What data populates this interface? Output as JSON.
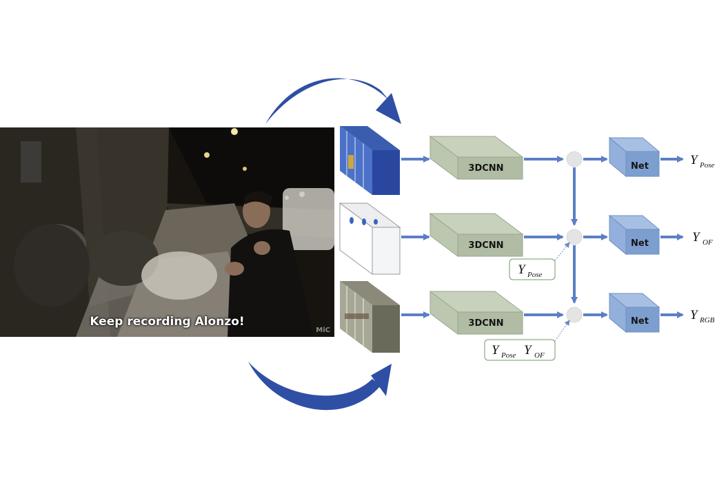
{
  "video": {
    "caption": "Keep recording Alonzo!",
    "watermark": "MiC"
  },
  "streams": [
    {
      "block_label": "3DCNN",
      "net_label": "Net",
      "output_symbol": "Y",
      "output_subscript": "Pose"
    },
    {
      "block_label": "3DCNN",
      "net_label": "Net",
      "output_symbol": "Y",
      "output_subscript": "OF"
    },
    {
      "block_label": "3DCNN",
      "net_label": "Net",
      "output_symbol": "Y",
      "output_subscript": "RGB"
    }
  ],
  "feedback_boxes": [
    {
      "terms": [
        {
          "symbol": "Y",
          "subscript": "Pose"
        }
      ]
    },
    {
      "terms": [
        {
          "symbol": "Y",
          "subscript": "Pose"
        },
        {
          "symbol": "Y",
          "subscript": "OF"
        }
      ]
    }
  ],
  "colors": {
    "curved_arrow": "#2f4fa5",
    "flow_arrow": "#5b7fc4",
    "cnn_block": "#b5c4a8",
    "net_block": "#7d9fd0",
    "fusion_node": "#e4e4e4"
  }
}
